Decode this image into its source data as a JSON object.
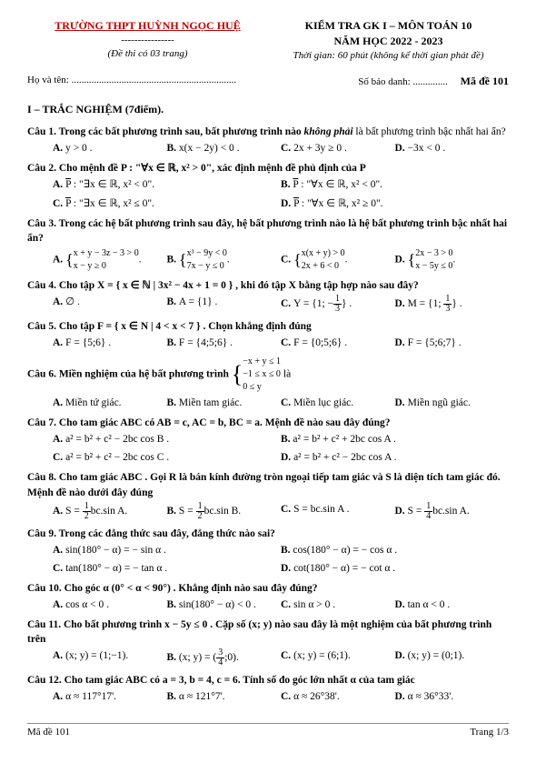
{
  "header": {
    "school": "TRƯỜNG THPT HUỲNH NGỌC HUỆ",
    "dashes": "----------------",
    "pages": "(Đề thi có 03 trang)",
    "exam_title": "KIỂM TRA GK I – MÔN TOÁN 10",
    "year": "NĂM HỌC 2022 - 2023",
    "time": "Thời gian: 60 phút (không kể thời gian phát đề)"
  },
  "name_row": {
    "name": "Họ và tên: ..................................................................",
    "sbd": "Số báo danh: ..............",
    "made": "Mã đề 101"
  },
  "section1": "I – TRẮC NGHIỆM (7điểm).",
  "q1": {
    "text": "Câu 1. Trong các bất phương trình sau, bất phương trình nào ",
    "ital": "không phải",
    "text2": " là bất phương trình bậc nhất hai ẩn?",
    "a": "y > 0 .",
    "b": "x(x − 2y) < 0 .",
    "c": "2x + 3y ≥ 0 .",
    "d": "−3x < 0 ."
  },
  "q2": {
    "text": "Câu 2. Cho mệnh đề P : \"∀x ∈ ℝ, x² > 0\", xác định mệnh đề phủ định của P",
    "a": " : \"∃x ∈ ℝ, x² < 0\".",
    "b": " : \"∀x ∈ ℝ, x² < 0\".",
    "c": " : \"∃x ∈ ℝ, x² ≤ 0\".",
    "d": " : \"∀x ∈ ℝ, x² ≥ 0\"."
  },
  "q3": {
    "text": "Câu 3. Trong các hệ bất phương trình sau đây, hệ bất phương trình nào là hệ bất phương trình bậc nhất hai ẩn?",
    "a1": "x + y − 3z − 3 > 0",
    "a2": "x − y ≥ 0",
    "b1": "x³ − 9y < 0",
    "b2": "7x − y ≤ 0",
    "c1": "x(x + y) > 0",
    "c2": "2x + 6 < 0",
    "d1": "2x − 3 > 0",
    "d2": "x − 5y ≤ 0"
  },
  "q4": {
    "text": "Câu 4. Cho tập X = { x ∈ ℕ | 3x² − 4x + 1 = 0 } , khi đó tập X bằng tập hợp nào sau đây?",
    "a": "∅ .",
    "b": "A = {1} .",
    "c_pre": "Y = ",
    "c": "1; −",
    "c_num": "1",
    "c_den": "3",
    "d_pre": "M = ",
    "d": "1; ",
    "d_num": "1",
    "d_den": "3"
  },
  "q5": {
    "text": "Câu 5. Cho tập F = { x ∈ N | 4 < x < 7 } . Chọn khẳng định đúng",
    "a": "F = {5;6} .",
    "b": "F = {4;5;6} .",
    "c": "F = {0;5;6} .",
    "d": "F = {5;6;7} ."
  },
  "q6": {
    "text": "Câu 6. Miền nghiệm của hệ bất phương trình ",
    "s1": "−x + y ≤ 1",
    "s2": "−1 ≤ x ≤ 0",
    "s3": "0 ≤ y",
    "tail": " là",
    "a": "Miền tứ giác.",
    "b": "Miền tam giác.",
    "c": "Miền lục giác.",
    "d": "Miền ngũ giác."
  },
  "q7": {
    "text": "Câu 7. Cho tam giác ABC có AB = c, AC = b, BC = a. Mệnh đề nào sau đây đúng?",
    "a": "a² = b² + c² − 2bc cos B .",
    "b": "a² = b² + c² + 2bc cos A .",
    "c": "a² = b² + c² − 2bc cos C .",
    "d": "a² = b² + c² − 2bc cos A ."
  },
  "q8": {
    "text": "Câu 8. Cho tam giác ABC . Gọi R là bán kính đường tròn ngoại tiếp tam giác và S là diện tích tam giác đó. Mệnh đề nào dưới đây đúng",
    "a_pre": "S = ",
    "a_num": "1",
    "a_den": "2",
    "a_tail": "bc.sin A.",
    "b_pre": "S = ",
    "b_num": "1",
    "b_den": "2",
    "b_tail": "bc.sin B.",
    "c": "S = bc.sin A .",
    "d_pre": "S = ",
    "d_num": "1",
    "d_den": "4",
    "d_tail": "bc.sin A."
  },
  "q9": {
    "text": "Câu 9. Trong các đẳng thức sau đây, đẳng thức nào sai?",
    "a": "sin(180° − α) = − sin α .",
    "b": "cos(180° − α) = − cos α .",
    "c": "tan(180° − α) = − tan α .",
    "d": "cot(180° − α) = − cot α ."
  },
  "q10": {
    "text": "Câu 10. Cho góc α (0° < α < 90°) . Khẳng định nào sau đây đúng?",
    "a": "cos α < 0 .",
    "b": "sin(180° − α) < 0 .",
    "c": "sin α > 0 .",
    "d": "tan α < 0 ."
  },
  "q11": {
    "text": "Câu 11. Cho bất phương trình x − 5y ≤ 0 . Cặp số (x; y) nào sau đây là một nghiệm của bất phương trình trên",
    "a": "(x; y) = (1;−1).",
    "b_pre": "(x; y) = (",
    "b_num": "3",
    "b_den": "4",
    "b_tail": ";0).",
    "c": "(x; y) = (6;1).",
    "d": "(x; y) = (0;1)."
  },
  "q12": {
    "text": "Câu 12. Cho tam giác ABC có a = 3, b = 4, c = 6. Tính số đo góc lớn nhất α của tam giác",
    "a": "α ≈ 117°17'.",
    "b": "α ≈ 121°7'.",
    "c": "α ≈ 26°38'.",
    "d": "α ≈ 36°33'."
  },
  "footer": {
    "left": "Mã đề 101",
    "right": "Trang 1/3"
  }
}
